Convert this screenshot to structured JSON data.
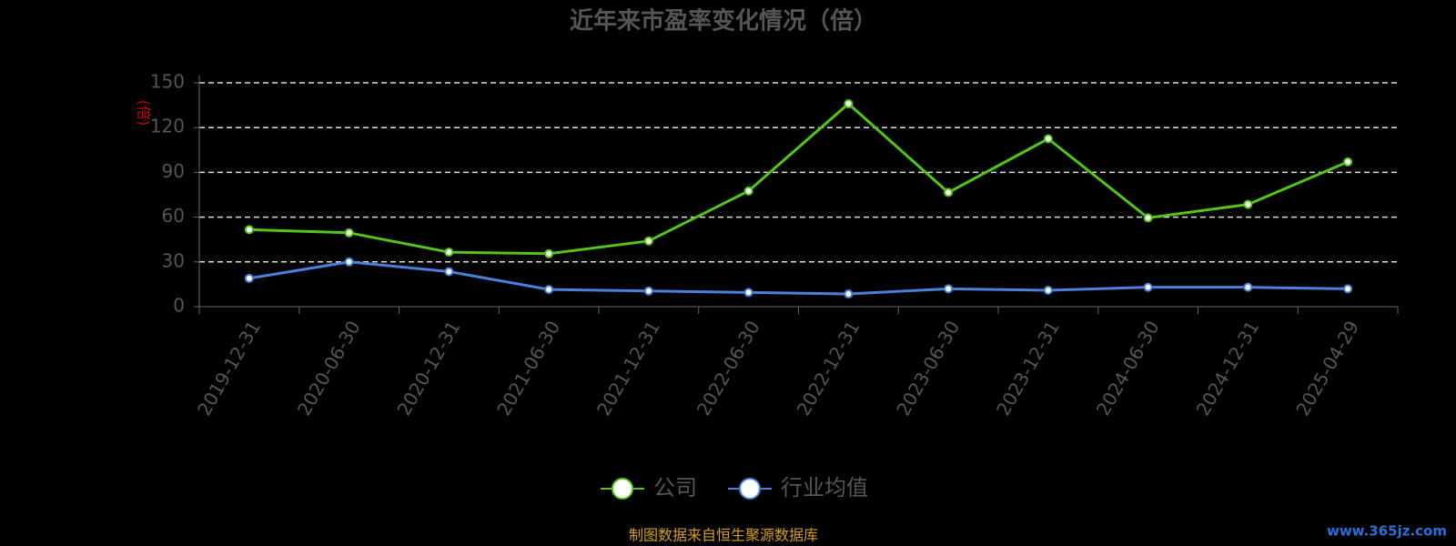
{
  "chart_data": {
    "type": "line",
    "title": "近年来市盈率变化情况（倍）",
    "y_label": "(倍)",
    "categories": [
      "2019-12-31",
      "2020-06-30",
      "2020-12-31",
      "2021-06-30",
      "2021-12-31",
      "2022-06-30",
      "2022-12-31",
      "2023-06-30",
      "2023-12-31",
      "2024-06-30",
      "2024-12-31",
      "2025-04-29"
    ],
    "series": [
      {
        "name": "公司",
        "color": "#52c41a",
        "values": [
          51.6,
          49.5,
          36.5,
          35.5,
          44,
          77.5,
          136,
          76.5,
          112.5,
          59.5,
          68.5,
          97
        ]
      },
      {
        "name": "行业均值",
        "color": "#4a7fdc",
        "values": [
          19,
          30,
          23.5,
          11.5,
          10.5,
          9.5,
          8.5,
          12,
          11,
          13,
          13,
          12
        ]
      }
    ],
    "ylim": [
      0,
      150
    ],
    "yticks": [
      0,
      30,
      60,
      90,
      120,
      150
    ],
    "grid": true,
    "legend": "bottom",
    "source": "制图数据来自恒生聚源数据库",
    "watermark": "www.365jz.com"
  }
}
